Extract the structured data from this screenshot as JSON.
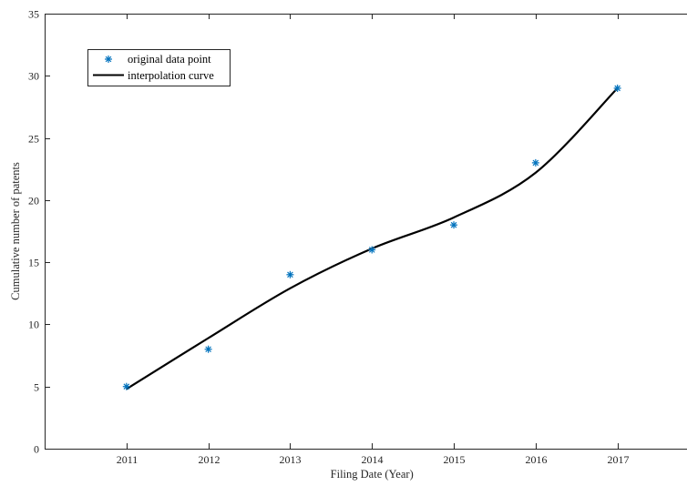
{
  "chart_data": {
    "type": "line",
    "xlabel": "Filing Date (Year)",
    "ylabel": "Cumulative number of patents",
    "xlim": [
      2010.0,
      2017.85
    ],
    "ylim": [
      0,
      35
    ],
    "xticks": [
      "2011",
      "2012",
      "2013",
      "2014",
      "2015",
      "2016",
      "2017"
    ],
    "yticks": [
      "0",
      "5",
      "10",
      "15",
      "20",
      "25",
      "30",
      "35"
    ],
    "legend_position": "top-left",
    "series": [
      {
        "name": "original data point",
        "kind": "markers",
        "marker": "asterisk",
        "color": "#0072BD",
        "x": [
          2011,
          2012,
          2013,
          2014,
          2015,
          2016,
          2017
        ],
        "y": [
          5,
          8,
          14,
          16,
          18,
          23,
          29
        ]
      },
      {
        "name": "interpolation curve",
        "kind": "line",
        "color": "#000000",
        "x": [
          2011,
          2012,
          2013,
          2014,
          2015,
          2016,
          2017
        ],
        "y": [
          4.8,
          8.9,
          12.9,
          16.1,
          18.6,
          22.2,
          29.0
        ]
      }
    ]
  }
}
